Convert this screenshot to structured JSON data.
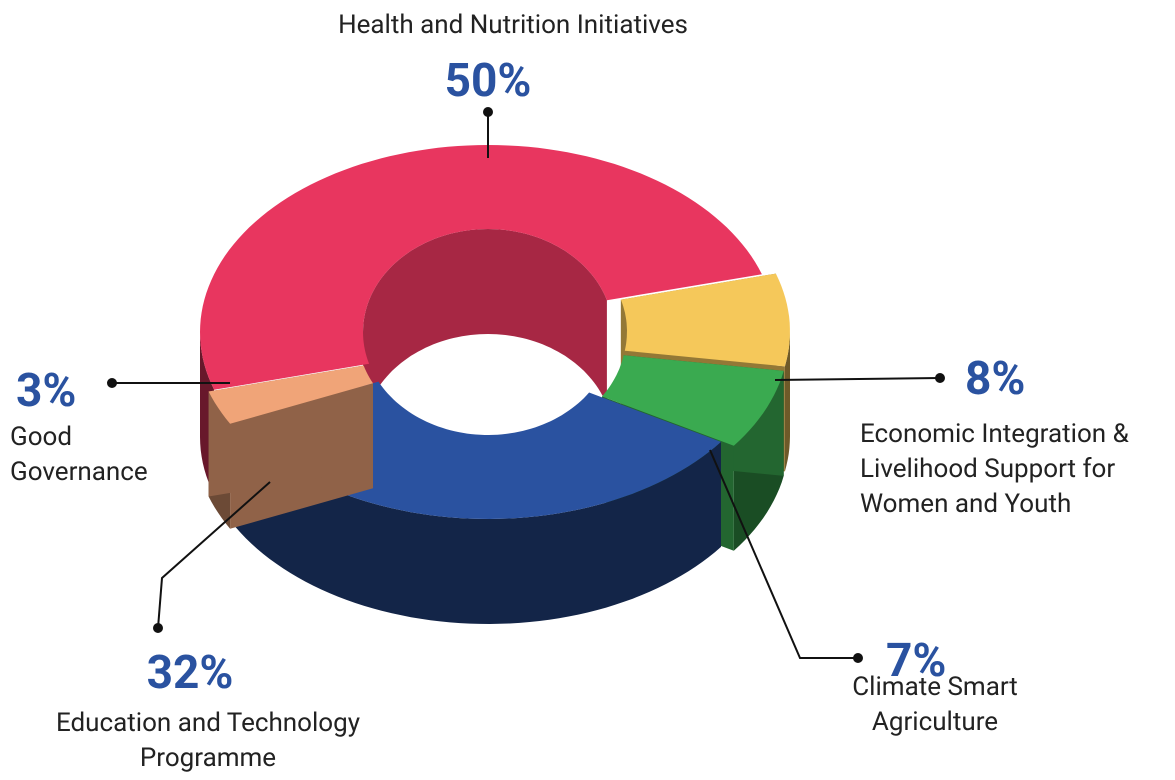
{
  "chart_data": {
    "type": "pie",
    "donut": true,
    "categories": [
      "Health and Nutrition Initiatives",
      "Economic Integration & Livelihood Support for Women and Youth",
      "Climate Smart Agriculture",
      "Education and Technology Programme",
      "Good Governance"
    ],
    "values": [
      50,
      8,
      7,
      32,
      3
    ],
    "value_labels": [
      "50%",
      "8%",
      "7%",
      "32%",
      "3%"
    ],
    "colors": [
      "#e8365f",
      "#f5c85a",
      "#3aaa50",
      "#2a52a0",
      "#f0a478"
    ]
  }
}
